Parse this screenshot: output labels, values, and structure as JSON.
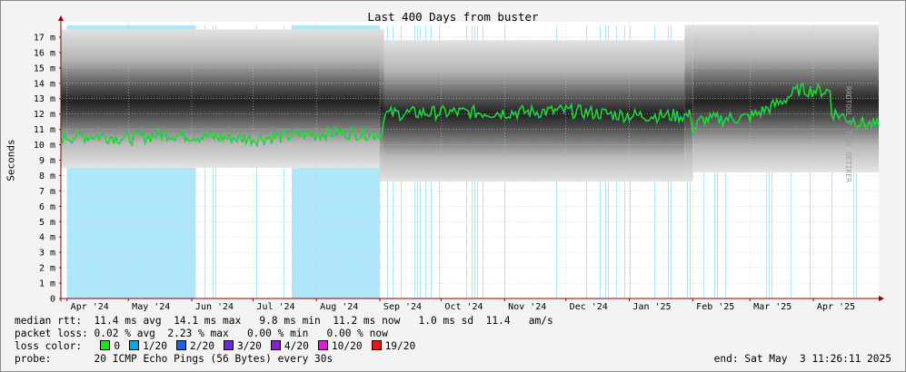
{
  "chart_data": {
    "type": "area",
    "title": "Last 400 Days from buster",
    "ylabel": "Seconds",
    "ylim": [
      0,
      0.018
    ],
    "yticks": [
      {
        "value": 0,
        "label": "0"
      },
      {
        "value": 0.001,
        "label": "1 m"
      },
      {
        "value": 0.002,
        "label": "2 m"
      },
      {
        "value": 0.003,
        "label": "3 m"
      },
      {
        "value": 0.004,
        "label": "4 m"
      },
      {
        "value": 0.005,
        "label": "5 m"
      },
      {
        "value": 0.006,
        "label": "6 m"
      },
      {
        "value": 0.007,
        "label": "7 m"
      },
      {
        "value": 0.008,
        "label": "8 m"
      },
      {
        "value": 0.009,
        "label": "9 m"
      },
      {
        "value": 0.01,
        "label": "10 m"
      },
      {
        "value": 0.011,
        "label": "11 m"
      },
      {
        "value": 0.012,
        "label": "12 m"
      },
      {
        "value": 0.013,
        "label": "13 m"
      },
      {
        "value": 0.014,
        "label": "14 m"
      },
      {
        "value": 0.015,
        "label": "15 m"
      },
      {
        "value": 0.016,
        "label": "16 m"
      },
      {
        "value": 0.017,
        "label": "17 m"
      }
    ],
    "x_range": [
      "2024-03-29",
      "2025-05-03"
    ],
    "xticks": [
      {
        "date": "2024-04-01",
        "label": "Apr '24"
      },
      {
        "date": "2024-05-01",
        "label": "May '24"
      },
      {
        "date": "2024-06-01",
        "label": "Jun '24"
      },
      {
        "date": "2024-07-01",
        "label": "Jul '24"
      },
      {
        "date": "2024-08-01",
        "label": "Aug '24"
      },
      {
        "date": "2024-09-01",
        "label": "Sep '24"
      },
      {
        "date": "2024-10-01",
        "label": "Oct '24"
      },
      {
        "date": "2024-11-01",
        "label": "Nov '24"
      },
      {
        "date": "2024-12-01",
        "label": "Dec '24"
      },
      {
        "date": "2025-01-01",
        "label": "Jan '25"
      },
      {
        "date": "2025-02-01",
        "label": "Feb '25"
      },
      {
        "date": "2025-03-01",
        "label": "Mar '25"
      },
      {
        "date": "2025-04-01",
        "label": "Apr '25"
      }
    ],
    "median_rtt_ms": [
      {
        "date": "2024-03-29",
        "value": 10.5
      },
      {
        "date": "2024-04-15",
        "value": 10.6
      },
      {
        "date": "2024-05-01",
        "value": 10.4
      },
      {
        "date": "2024-05-20",
        "value": 10.7
      },
      {
        "date": "2024-06-10",
        "value": 10.5
      },
      {
        "date": "2024-07-01",
        "value": 10.4
      },
      {
        "date": "2024-07-20",
        "value": 10.6
      },
      {
        "date": "2024-08-10",
        "value": 10.8
      },
      {
        "date": "2024-08-31",
        "value": 10.7
      },
      {
        "date": "2024-09-03",
        "value": 12.0
      },
      {
        "date": "2024-10-01",
        "value": 12.1
      },
      {
        "date": "2024-11-01",
        "value": 12.1
      },
      {
        "date": "2024-12-01",
        "value": 12.2
      },
      {
        "date": "2025-01-01",
        "value": 11.9
      },
      {
        "date": "2025-01-28",
        "value": 11.9
      },
      {
        "date": "2025-02-01",
        "value": 10.9
      },
      {
        "date": "2025-02-05",
        "value": 11.6
      },
      {
        "date": "2025-03-01",
        "value": 11.8
      },
      {
        "date": "2025-03-15",
        "value": 12.7
      },
      {
        "date": "2025-03-25",
        "value": 13.6
      },
      {
        "date": "2025-04-05",
        "value": 13.5
      },
      {
        "date": "2025-04-10",
        "value": 12.1
      },
      {
        "date": "2025-04-25",
        "value": 11.4
      },
      {
        "date": "2025-05-03",
        "value": 11.2
      }
    ],
    "spread_ms": [
      {
        "date": "2024-03-29",
        "min": 8.5,
        "max": 17.5
      },
      {
        "date": "2024-09-01",
        "min": 8.5,
        "max": 17.5
      },
      {
        "date": "2024-09-03",
        "min": 7.6,
        "max": 16.8
      },
      {
        "date": "2025-01-28",
        "min": 7.6,
        "max": 16.8
      },
      {
        "date": "2025-02-01",
        "min": 8.4,
        "max": 17.8
      },
      {
        "date": "2025-05-03",
        "min": 8.2,
        "max": 17.5
      }
    ],
    "loss_shading": [
      {
        "start": "2024-04-01",
        "end": "2024-06-03",
        "level": "1/20"
      },
      {
        "start": "2024-07-20",
        "end": "2024-09-01",
        "level": "1/20"
      }
    ],
    "colors": {
      "background": "#f3f3f3",
      "plot_bg": "#ffffff",
      "grid": "#c8c8c8",
      "loss_blue": "#aee6fa",
      "median_green": "#22dd22",
      "median_blue": "#0aa6e0",
      "axis": "#8b0000"
    }
  },
  "stats": {
    "median_rtt": "median rtt:  11.4 ms avg  14.1 ms max   9.8 ms min  11.2 ms now   1.0 ms sd  11.4   am/s",
    "packet_loss": "packet loss: 0.02 % avg  2.23 % max   0.00 % min   0.00 % now",
    "loss_color_label": "loss color:",
    "probe": "probe:       20 ICMP Echo Pings (56 Bytes) every 30s",
    "end": "end: Sat May  3 11:26:11 2025"
  },
  "loss_colors": [
    {
      "label": "0",
      "color": "#22dd22"
    },
    {
      "label": "1/20",
      "color": "#0aa6e0"
    },
    {
      "label": "2/20",
      "color": "#1e5fe6"
    },
    {
      "label": "3/20",
      "color": "#6d28d9"
    },
    {
      "label": "4/20",
      "color": "#8a1ed6"
    },
    {
      "label": "10/20",
      "color": "#d81ed6"
    },
    {
      "label": "19/20",
      "color": "#e01818"
    }
  ],
  "vendor": "RRDTOOL / TOBI OETIKER"
}
